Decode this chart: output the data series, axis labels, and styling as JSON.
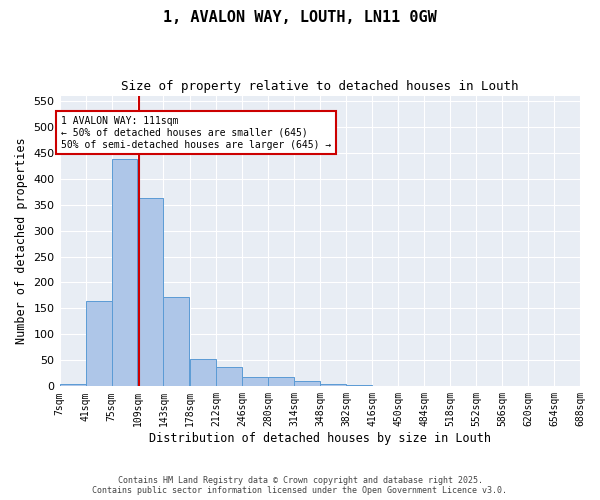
{
  "title_line1": "1, AVALON WAY, LOUTH, LN11 0GW",
  "title_line2": "Size of property relative to detached houses in Louth",
  "xlabel": "Distribution of detached houses by size in Louth",
  "ylabel": "Number of detached properties",
  "bins": [
    7,
    41,
    75,
    109,
    143,
    178,
    212,
    246,
    280,
    314,
    348,
    382,
    416,
    450,
    484,
    518,
    552,
    586,
    620,
    654,
    688
  ],
  "bin_labels": [
    "7sqm",
    "41sqm",
    "75sqm",
    "109sqm",
    "143sqm",
    "178sqm",
    "212sqm",
    "246sqm",
    "280sqm",
    "314sqm",
    "348sqm",
    "382sqm",
    "416sqm",
    "450sqm",
    "484sqm",
    "518sqm",
    "552sqm",
    "586sqm",
    "620sqm",
    "654sqm",
    "688sqm"
  ],
  "counts": [
    5,
    165,
    437,
    362,
    172,
    52,
    38,
    18,
    18,
    10,
    5,
    3,
    1,
    0,
    0,
    0,
    0,
    1,
    0,
    0,
    1
  ],
  "bar_color": "#aec6e8",
  "bar_edge_color": "#5b9bd5",
  "background_color": "#e8edf4",
  "grid_color": "#ffffff",
  "property_size": 111,
  "property_label": "1 AVALON WAY: 111sqm",
  "annotation_line1": "← 50% of detached houses are smaller (645)",
  "annotation_line2": "50% of semi-detached houses are larger (645) →",
  "vline_color": "#cc0000",
  "annotation_box_color": "#cc0000",
  "ylim": [
    0,
    560
  ],
  "yticks": [
    0,
    50,
    100,
    150,
    200,
    250,
    300,
    350,
    400,
    450,
    500,
    550
  ],
  "footer_line1": "Contains HM Land Registry data © Crown copyright and database right 2025.",
  "footer_line2": "Contains public sector information licensed under the Open Government Licence v3.0."
}
